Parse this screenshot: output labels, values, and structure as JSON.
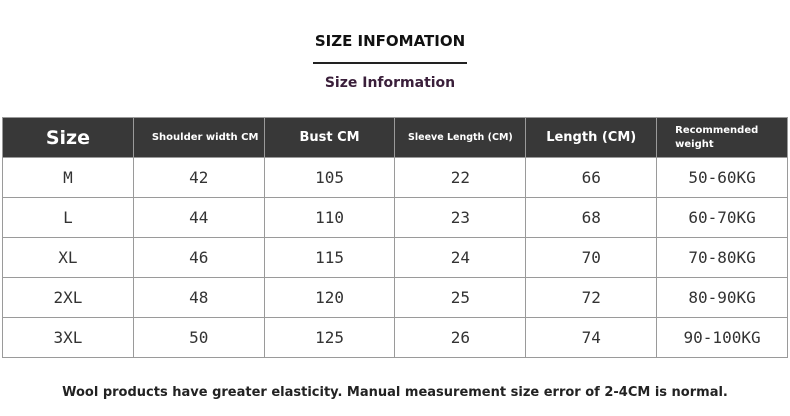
{
  "header": {
    "title": "SIZE INFOMATION",
    "subtitle": "Size Information"
  },
  "table": {
    "columns": [
      "Size",
      "Shoulder width CM",
      "Bust CM",
      "Sleeve Length (CM)",
      "Length (CM)",
      "Recommended weight"
    ],
    "rows": [
      [
        "M",
        42,
        105,
        22,
        66,
        "50-60KG"
      ],
      [
        "L",
        44,
        110,
        23,
        68,
        "60-70KG"
      ],
      [
        "XL",
        46,
        115,
        24,
        70,
        "70-80KG"
      ],
      [
        "2XL",
        48,
        120,
        25,
        72,
        "80-90KG"
      ],
      [
        "3XL",
        50,
        125,
        26,
        74,
        "90-100KG"
      ]
    ]
  },
  "footer": {
    "note": "Wool products have greater elasticity. Manual measurement size error of 2-4CM is normal."
  }
}
